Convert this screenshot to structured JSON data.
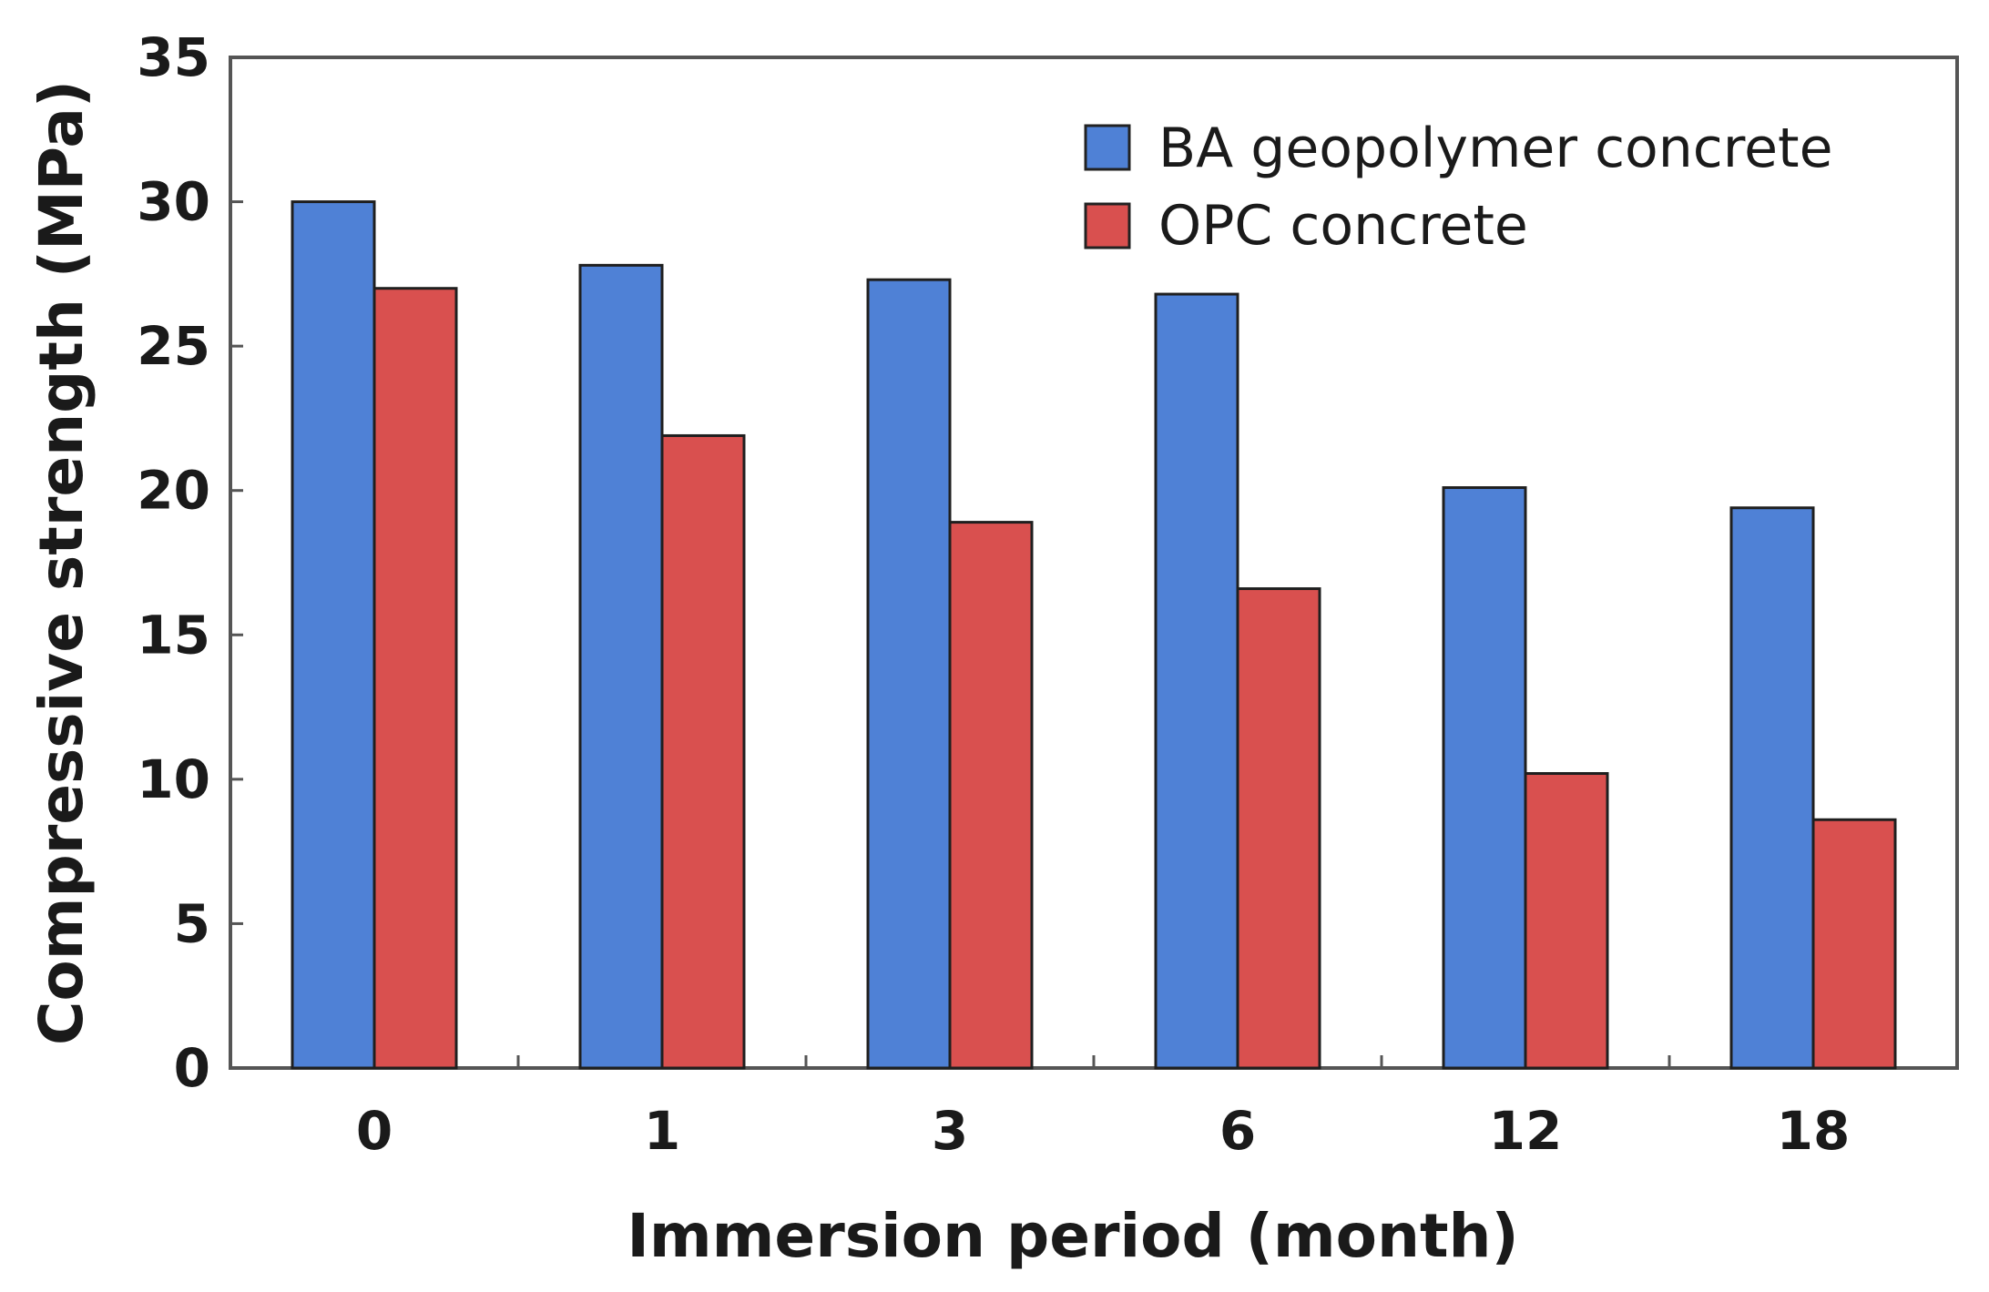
{
  "chart_data": {
    "type": "bar",
    "title": "",
    "xlabel": "Immersion period (month)",
    "ylabel": "Compressive strength (MPa)",
    "categories": [
      "0",
      "1",
      "3",
      "6",
      "12",
      "18"
    ],
    "ylim": [
      0,
      35
    ],
    "yticks": [
      "0",
      "5",
      "10",
      "15",
      "20",
      "25",
      "30",
      "35"
    ],
    "grid": false,
    "legend_position": "top-right",
    "series": [
      {
        "name": "BA geopolymer concrete",
        "color": "#4f81d6",
        "values": [
          30.0,
          27.8,
          27.3,
          26.8,
          20.1,
          19.4
        ]
      },
      {
        "name": "OPC concrete",
        "color": "#d9504f",
        "values": [
          27.0,
          21.9,
          18.9,
          16.6,
          10.2,
          8.6
        ]
      }
    ]
  }
}
